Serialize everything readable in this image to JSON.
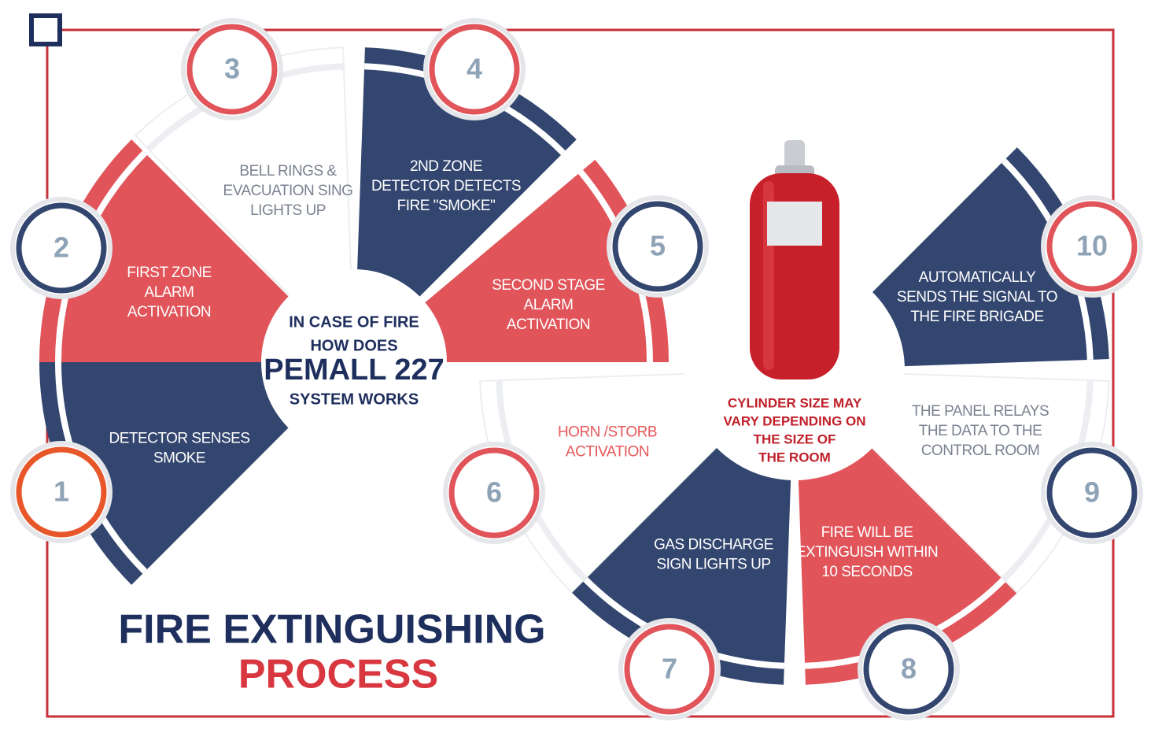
{
  "title": {
    "line1": "FIRE EXTINGUISHING",
    "line2": "PROCESS"
  },
  "center": {
    "lines": [
      "IN CASE OF FIRE",
      "HOW DOES",
      "PEMALL 227",
      "SYSTEM WORKS"
    ]
  },
  "cylinder_note": [
    "CYLINDER SIZE MAY",
    "VARY DEPENDING ON",
    "THE SIZE OF",
    "THE ROOM"
  ],
  "steps": [
    {
      "number": 1,
      "label": [
        "DETECTOR SENSES",
        "SMOKE"
      ]
    },
    {
      "number": 2,
      "label": [
        "FIRST ZONE",
        "ALARM",
        "ACTIVATION"
      ]
    },
    {
      "number": 3,
      "label": [
        "BELL RINGS &",
        "EVACUATION SING",
        "LIGHTS UP"
      ]
    },
    {
      "number": 4,
      "label": [
        "2ND ZONE",
        "DETECTOR DETECTS",
        "FIRE \"SMOKE\""
      ]
    },
    {
      "number": 5,
      "label": [
        "SECOND STAGE",
        "ALARM",
        "ACTIVATION"
      ]
    },
    {
      "number": 6,
      "label": [
        "HORN /STORB",
        "ACTIVATION"
      ]
    },
    {
      "number": 7,
      "label": [
        "GAS DISCHARGE",
        "SIGN LIGHTS UP"
      ]
    },
    {
      "number": 8,
      "label": [
        "FIRE WILL BE",
        "EXTINGUISH WITHIN",
        "10 SECONDS"
      ]
    },
    {
      "number": 9,
      "label": [
        "THE PANEL RELAYS",
        "THE DATA TO THE",
        "CONTROL ROOM"
      ]
    },
    {
      "number": 10,
      "label": [
        "AUTOMATICALLY",
        "SENDS THE SIGNAL TO",
        "THE FIRE BRIGADE"
      ]
    }
  ]
}
